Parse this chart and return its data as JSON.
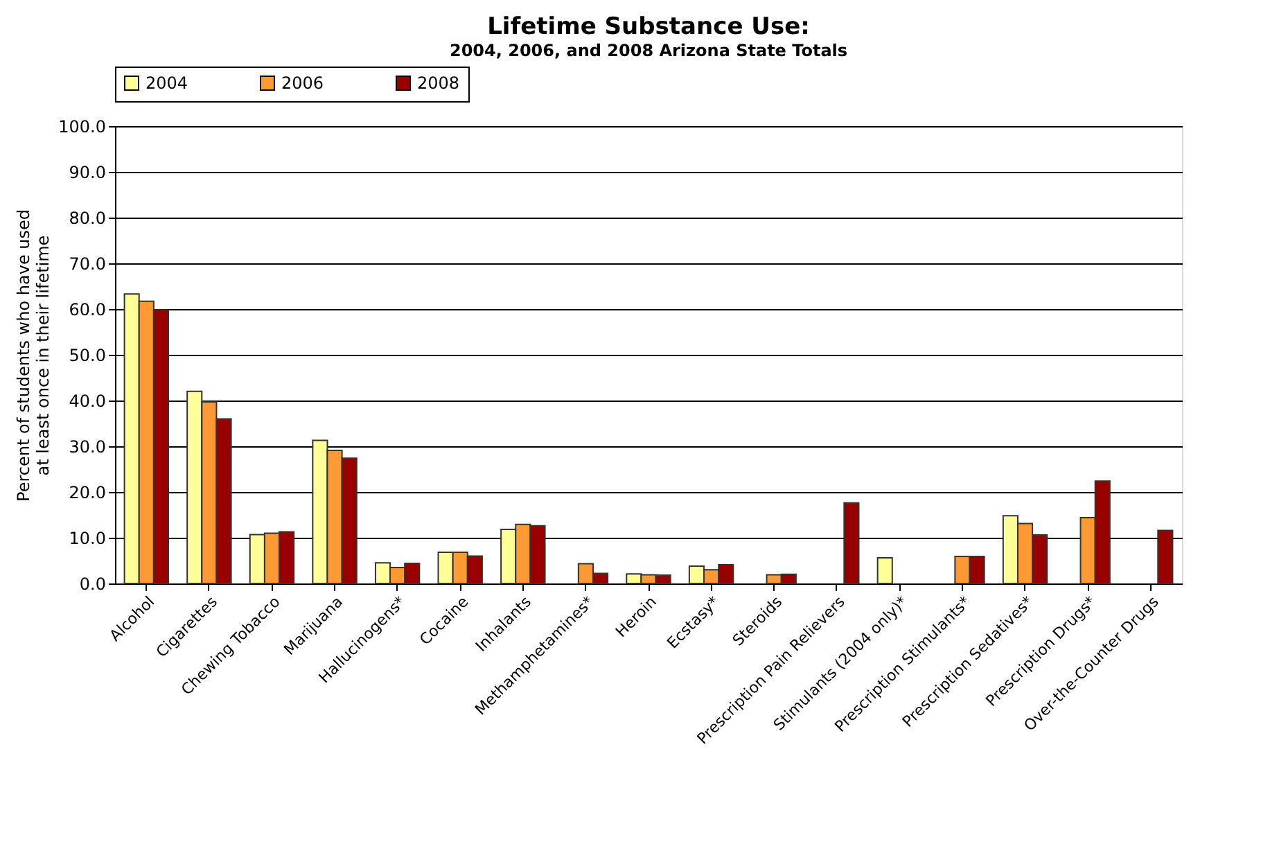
{
  "chart_data": {
    "type": "bar",
    "title": "Lifetime Substance Use:",
    "subtitle": "2004, 2006, and 2008 Arizona State Totals",
    "ylabel": "Percent of students who have used at least once in their lifetime",
    "categories": [
      "Alcohol",
      "Cigarettes",
      "Chewing Tobacco",
      "Marijuana",
      "Hallucinogens*",
      "Cocaine",
      "Inhalants",
      "Methamphetamines*",
      "Heroin",
      "Ecstasy*",
      "Steroids",
      "Prescription Pain Relievers",
      "Stimulants (2004 only)*",
      "Prescription Stimulants*",
      "Prescription Sedatives*",
      "Prescription Drugs*",
      "Over-the-Counter Drugs"
    ],
    "series": [
      {
        "name": "2004",
        "color": "#ffff99",
        "values": [
          63.3,
          42.0,
          10.7,
          31.3,
          4.5,
          6.8,
          11.8,
          null,
          2.1,
          3.8,
          null,
          null,
          5.6,
          null,
          14.8,
          null,
          null
        ]
      },
      {
        "name": "2006",
        "color": "#ff9933",
        "values": [
          61.7,
          39.7,
          11.0,
          29.1,
          3.5,
          6.8,
          12.9,
          4.3,
          1.9,
          3.0,
          1.9,
          null,
          null,
          5.9,
          13.1,
          14.4,
          null
        ]
      },
      {
        "name": "2008",
        "color": "#990000",
        "values": [
          59.8,
          36.0,
          11.3,
          27.4,
          4.4,
          6.0,
          12.6,
          2.2,
          1.8,
          4.1,
          2.0,
          17.6,
          null,
          5.9,
          10.6,
          22.4,
          11.6
        ]
      }
    ],
    "ylim": [
      0,
      100
    ],
    "yticks": [
      {
        "value": 0,
        "label": "0.0"
      },
      {
        "value": 10,
        "label": "10.0"
      },
      {
        "value": 20,
        "label": "20.0"
      },
      {
        "value": 30,
        "label": "30.0"
      },
      {
        "value": 40,
        "label": "40.0"
      },
      {
        "value": 50,
        "label": "50.0"
      },
      {
        "value": 60,
        "label": "60.0"
      },
      {
        "value": 70,
        "label": "70.0"
      },
      {
        "value": 80,
        "label": "80.0"
      },
      {
        "value": 90,
        "label": "90.0"
      },
      {
        "value": 100,
        "label": "100.0"
      }
    ],
    "grid": "y",
    "legend": "top"
  }
}
